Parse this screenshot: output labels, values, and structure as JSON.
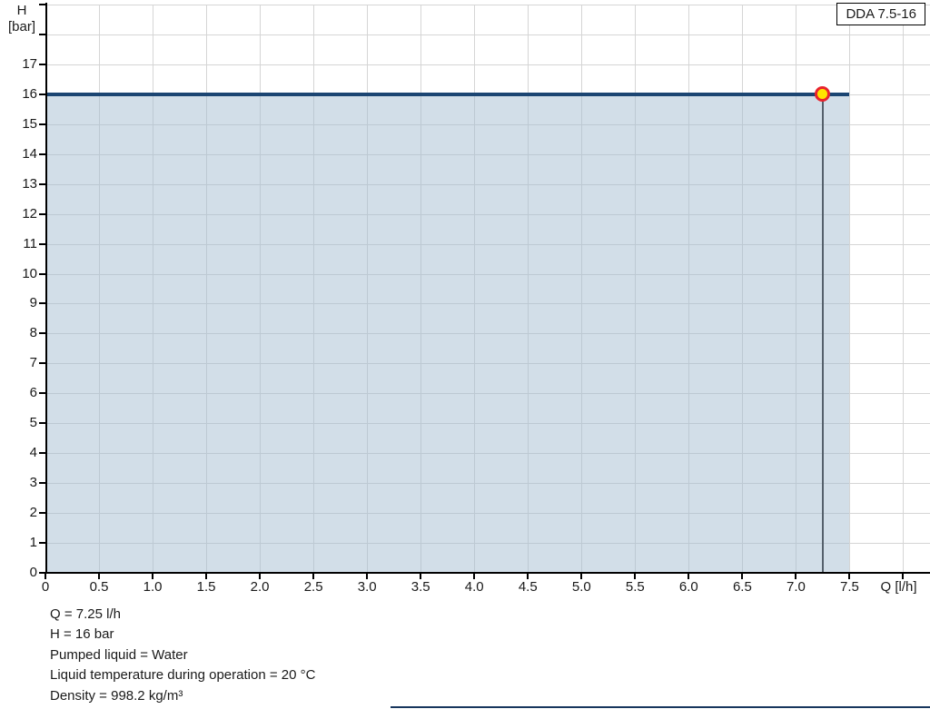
{
  "chart_data": {
    "type": "line",
    "title_box": "DDA 7.5-16",
    "x_axis": {
      "label": "Q [l/h]",
      "min": 0,
      "max": 8.25,
      "tick_step": 0.5,
      "last_tick": 8.0,
      "tick_labels": [
        "0",
        "0.5",
        "1.0",
        "1.5",
        "2.0",
        "2.5",
        "3.0",
        "3.5",
        "4.0",
        "4.5",
        "5.0",
        "5.5",
        "6.0",
        "6.5",
        "7.0",
        "7.5"
      ]
    },
    "y_axis": {
      "label_line1": "H",
      "label_line2": "[bar]",
      "min": 0,
      "max": 19,
      "tick_step": 1,
      "tick_labels": [
        "0",
        "1",
        "2",
        "3",
        "4",
        "5",
        "6",
        "7",
        "8",
        "9",
        "10",
        "11",
        "12",
        "13",
        "14",
        "15",
        "16",
        "17"
      ]
    },
    "grid": true,
    "legend_position": "none",
    "series": [
      {
        "name": "pump-curve",
        "x": [
          0,
          7.5
        ],
        "y": [
          16,
          16
        ],
        "color": "#1b4572",
        "fill_to_zero": true,
        "fill_color": "rgba(165,189,209,0.5)"
      }
    ],
    "operating_point": {
      "q": 7.25,
      "h": 16,
      "marker_fill": "#ffe400",
      "marker_ring": "#e8232d",
      "drop_line_color": "#55606b"
    }
  },
  "colors": {
    "grid": "#d5d5d5",
    "axis": "#000000",
    "text": "#1a1a1a",
    "bottom_divider": "#17365d"
  },
  "info": {
    "lines": [
      "Q = 7.25 l/h",
      "H = 16 bar",
      "Pumped liquid = Water",
      "Liquid temperature during operation = 20 °C",
      "Density = 998.2 kg/m³"
    ]
  }
}
